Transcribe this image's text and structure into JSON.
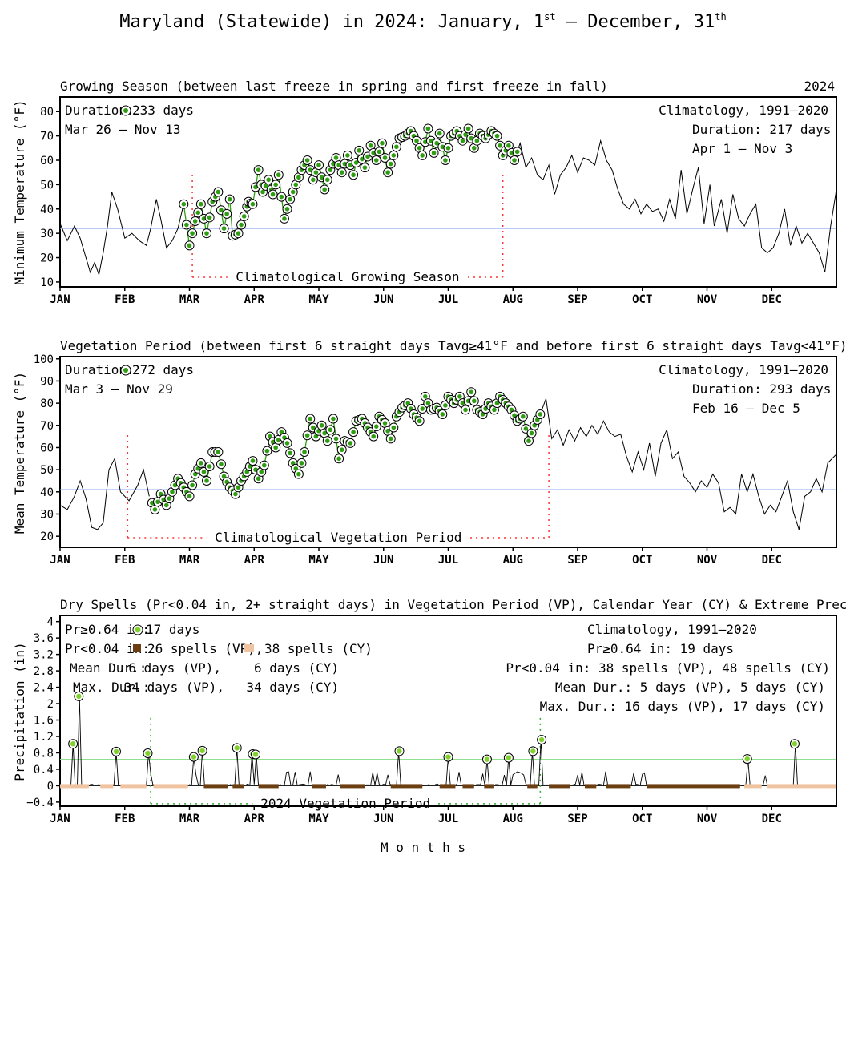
{
  "title": {
    "main": "Maryland (Statewide) in 2024: January, 1",
    "sup1": "st",
    "mid": " – December, 31",
    "sup2": "th"
  },
  "months": [
    "JAN",
    "FEB",
    "MAR",
    "APR",
    "MAY",
    "JUN",
    "JUL",
    "AUG",
    "SEP",
    "OCT",
    "NOV",
    "DEC"
  ],
  "xlabel": "M o n t h s",
  "colors": {
    "line": "#000000",
    "marker_fill": "#2e9d12",
    "marker_light": "#7fd12c",
    "threshold": "#8fa8f5",
    "climo": "#ff3333",
    "dry_vp": "#6b3f12",
    "dry_cy": "#f0c4a0",
    "extreme_line": "#90e090",
    "veg_period": "#33aa33"
  },
  "panel1": {
    "title": "Growing Season (between last freeze in spring and first freeze in fall)",
    "year": "2024",
    "ylabel": "Minimum Temperature (°F)",
    "duration_label": "Duration:",
    "duration_value": "233 days",
    "range": "Mar 26 – Nov 13",
    "climo_title": "Climatology, 1991–2020",
    "climo_duration": "Duration: 217 days",
    "climo_range": "Apr 1 – Nov 3",
    "climo_label": "Climatological Growing Season",
    "yticks": [
      "10",
      "20",
      "30",
      "40",
      "50",
      "60",
      "70",
      "80"
    ]
  },
  "panel2": {
    "title": "Vegetation Period (between first 6 straight days Tavg≥41°F and before first 6 straight days Tavg<41°F)",
    "ylabel": "Mean Temperature (°F)",
    "duration_label": "Duration:",
    "duration_value": "272 days",
    "range": "Mar 3 – Nov 29",
    "climo_title": "Climatology, 1991–2020",
    "climo_duration": "Duration: 293 days",
    "climo_range": "Feb 16 – Dec 5",
    "climo_label": "Climatological Vegetation Period",
    "yticks": [
      "20",
      "30",
      "40",
      "50",
      "60",
      "70",
      "80",
      "90",
      "100"
    ]
  },
  "panel3": {
    "title": "Dry Spells (Pr<0.04 in, 2+ straight days) in Vegetation Period (VP), Calendar Year (CY) & Extreme Precipitation (Pr≥0.64in)",
    "ylabel": "Precipitation (in)",
    "ext_label": "Pr≥0.64 in:",
    "ext_value": "17 days",
    "dry_label": "Pr<0.04 in:",
    "dry_vp": "26 spells (VP),",
    "dry_cy": "38 spells (CY)",
    "mean_label": "Mean Dur.:",
    "mean_vp": "6 days (VP),",
    "mean_cy": "6 days (CY)",
    "max_label": "Max. Dur.:",
    "max_vp": "34 days (VP),",
    "max_cy": "34 days (CY)",
    "climo_title": "Climatology, 1991–2020",
    "climo_ext": "Pr≥0.64 in:  19 days",
    "climo_dry": "Pr<0.04 in:  38 spells (VP), 48 spells (CY)",
    "climo_mean": "Mean Dur.:  5 days (VP),   5 days (CY)",
    "climo_max": "Max. Dur.: 16 days (VP), 17 days (CY)",
    "veg_label": "2024 Vegetation Period",
    "yticks": [
      "−0.4",
      "0",
      "0.4",
      "0.8",
      "1.2",
      "1.6",
      "2",
      "2.4",
      "2.8",
      "3.2",
      "3.6",
      "4"
    ]
  },
  "chart_data": [
    {
      "type": "line",
      "title": "Growing Season (between last freeze in spring and first freeze in fall)",
      "ylabel": "Minimum Temperature (°F)",
      "ylim": [
        8,
        86
      ],
      "threshold": 32,
      "season_start_day": 86,
      "season_end_day": 318,
      "climo_start_day": 92,
      "climo_end_day": 308,
      "anchors": [
        [
          0,
          34
        ],
        [
          5,
          27
        ],
        [
          10,
          33
        ],
        [
          14,
          28
        ],
        [
          17,
          22
        ],
        [
          21,
          14
        ],
        [
          24,
          18
        ],
        [
          27,
          13
        ],
        [
          30,
          22
        ],
        [
          33,
          33
        ],
        [
          36,
          47
        ],
        [
          40,
          40
        ],
        [
          45,
          28
        ],
        [
          50,
          30
        ],
        [
          55,
          27
        ],
        [
          60,
          25
        ],
        [
          63,
          32
        ],
        [
          67,
          44
        ],
        [
          70,
          36
        ],
        [
          74,
          24
        ],
        [
          78,
          27
        ],
        [
          82,
          32
        ],
        [
          86,
          42
        ],
        [
          90,
          25
        ],
        [
          94,
          35
        ],
        [
          98,
          42
        ],
        [
          102,
          30
        ],
        [
          106,
          43
        ],
        [
          110,
          47
        ],
        [
          114,
          32
        ],
        [
          118,
          44
        ],
        [
          120,
          29
        ],
        [
          124,
          30
        ],
        [
          128,
          37
        ],
        [
          131,
          43
        ],
        [
          134,
          42
        ],
        [
          138,
          56
        ],
        [
          141,
          47
        ],
        [
          145,
          52
        ],
        [
          148,
          46
        ],
        [
          152,
          54
        ],
        [
          156,
          36
        ],
        [
          160,
          44
        ],
        [
          164,
          50
        ],
        [
          168,
          56
        ],
        [
          172,
          60
        ],
        [
          176,
          52
        ],
        [
          180,
          58
        ],
        [
          184,
          48
        ],
        [
          188,
          56
        ],
        [
          192,
          61
        ],
        [
          196,
          55
        ],
        [
          200,
          62
        ],
        [
          204,
          54
        ],
        [
          208,
          64
        ],
        [
          212,
          57
        ],
        [
          216,
          66
        ],
        [
          220,
          60
        ],
        [
          224,
          67
        ],
        [
          228,
          55
        ],
        [
          232,
          62
        ],
        [
          236,
          69
        ],
        [
          240,
          70
        ],
        [
          244,
          72
        ],
        [
          248,
          68
        ],
        [
          252,
          62
        ],
        [
          256,
          73
        ],
        [
          260,
          63
        ],
        [
          264,
          71
        ],
        [
          268,
          60
        ],
        [
          272,
          70
        ],
        [
          276,
          72
        ],
        [
          280,
          68
        ],
        [
          284,
          73
        ],
        [
          288,
          65
        ],
        [
          292,
          71
        ],
        [
          296,
          69
        ],
        [
          300,
          72
        ],
        [
          304,
          70
        ],
        [
          308,
          62
        ],
        [
          312,
          66
        ],
        [
          316,
          60
        ],
        [
          320,
          67
        ],
        [
          324,
          57
        ],
        [
          328,
          61
        ],
        [
          332,
          54
        ],
        [
          336,
          52
        ],
        [
          340,
          58
        ],
        [
          344,
          46
        ],
        [
          348,
          54
        ],
        [
          352,
          57
        ],
        [
          356,
          62
        ],
        [
          360,
          55
        ],
        [
          364,
          61
        ],
        [
          368,
          60
        ],
        [
          372,
          58
        ],
        [
          376,
          68
        ],
        [
          380,
          60
        ],
        [
          384,
          56
        ],
        [
          388,
          48
        ],
        [
          392,
          42
        ],
        [
          396,
          40
        ],
        [
          400,
          44
        ],
        [
          404,
          38
        ],
        [
          408,
          42
        ],
        [
          412,
          39
        ],
        [
          416,
          40
        ],
        [
          420,
          35
        ],
        [
          424,
          44
        ],
        [
          428,
          36
        ],
        [
          432,
          56
        ],
        [
          436,
          38
        ],
        [
          440,
          48
        ],
        [
          444,
          57
        ],
        [
          448,
          34
        ],
        [
          452,
          50
        ],
        [
          455,
          33
        ],
        [
          460,
          44
        ],
        [
          464,
          30
        ],
        [
          468,
          46
        ],
        [
          472,
          36
        ],
        [
          476,
          33
        ],
        [
          480,
          38
        ],
        [
          484,
          42
        ],
        [
          488,
          24
        ],
        [
          492,
          22
        ],
        [
          496,
          24
        ],
        [
          500,
          30
        ],
        [
          504,
          40
        ],
        [
          508,
          25
        ],
        [
          512,
          33
        ],
        [
          516,
          26
        ],
        [
          520,
          30
        ],
        [
          524,
          26
        ],
        [
          528,
          22
        ],
        [
          532,
          14
        ],
        [
          536,
          33
        ],
        [
          540,
          48
        ]
      ],
      "note": "x in day units of a 540-day display scale matching the month axis (JAN..DEC); markers drawn for in-season days"
    },
    {
      "type": "line",
      "title": "Vegetation Period (between first 6 straight days Tavg≥41°F and before first 6 straight days Tavg<41°F)",
      "ylabel": "Mean Temperature (°F)",
      "ylim": [
        15,
        101
      ],
      "threshold": 41,
      "season_start_day": 63,
      "season_end_day": 334,
      "climo_start_day": 47,
      "climo_end_day": 340,
      "anchors": [
        [
          0,
          34
        ],
        [
          5,
          32
        ],
        [
          10,
          38
        ],
        [
          14,
          45
        ],
        [
          18,
          37
        ],
        [
          22,
          24
        ],
        [
          26,
          23
        ],
        [
          30,
          26
        ],
        [
          34,
          50
        ],
        [
          38,
          55
        ],
        [
          42,
          40
        ],
        [
          48,
          36
        ],
        [
          54,
          43
        ],
        [
          58,
          50
        ],
        [
          62,
          38
        ],
        [
          66,
          32
        ],
        [
          70,
          39
        ],
        [
          74,
          34
        ],
        [
          78,
          40
        ],
        [
          82,
          46
        ],
        [
          86,
          42
        ],
        [
          90,
          38
        ],
        [
          94,
          48
        ],
        [
          98,
          53
        ],
        [
          102,
          45
        ],
        [
          106,
          58
        ],
        [
          110,
          58
        ],
        [
          114,
          47
        ],
        [
          118,
          42
        ],
        [
          122,
          39
        ],
        [
          126,
          45
        ],
        [
          130,
          49
        ],
        [
          134,
          54
        ],
        [
          138,
          46
        ],
        [
          142,
          52
        ],
        [
          146,
          65
        ],
        [
          150,
          60
        ],
        [
          154,
          67
        ],
        [
          158,
          62
        ],
        [
          162,
          53
        ],
        [
          166,
          48
        ],
        [
          170,
          58
        ],
        [
          174,
          73
        ],
        [
          178,
          65
        ],
        [
          182,
          70
        ],
        [
          186,
          63
        ],
        [
          190,
          73
        ],
        [
          194,
          55
        ],
        [
          198,
          63
        ],
        [
          202,
          62
        ],
        [
          206,
          72
        ],
        [
          210,
          73
        ],
        [
          214,
          69
        ],
        [
          218,
          65
        ],
        [
          222,
          74
        ],
        [
          226,
          71
        ],
        [
          230,
          64
        ],
        [
          234,
          74
        ],
        [
          238,
          78
        ],
        [
          242,
          80
        ],
        [
          246,
          75
        ],
        [
          250,
          72
        ],
        [
          254,
          83
        ],
        [
          258,
          77
        ],
        [
          262,
          78
        ],
        [
          266,
          75
        ],
        [
          270,
          83
        ],
        [
          274,
          80
        ],
        [
          278,
          83
        ],
        [
          282,
          77
        ],
        [
          286,
          85
        ],
        [
          290,
          77
        ],
        [
          294,
          75
        ],
        [
          298,
          80
        ],
        [
          302,
          77
        ],
        [
          306,
          83
        ],
        [
          310,
          80
        ],
        [
          314,
          77
        ],
        [
          318,
          72
        ],
        [
          322,
          74
        ],
        [
          326,
          63
        ],
        [
          330,
          70
        ],
        [
          334,
          75
        ],
        [
          338,
          82
        ],
        [
          342,
          64
        ],
        [
          346,
          68
        ],
        [
          350,
          61
        ],
        [
          354,
          68
        ],
        [
          358,
          63
        ],
        [
          362,
          69
        ],
        [
          366,
          65
        ],
        [
          370,
          70
        ],
        [
          374,
          66
        ],
        [
          378,
          72
        ],
        [
          382,
          67
        ],
        [
          386,
          65
        ],
        [
          390,
          66
        ],
        [
          394,
          56
        ],
        [
          398,
          49
        ],
        [
          402,
          58
        ],
        [
          406,
          50
        ],
        [
          410,
          62
        ],
        [
          414,
          47
        ],
        [
          418,
          62
        ],
        [
          422,
          68
        ],
        [
          426,
          55
        ],
        [
          430,
          58
        ],
        [
          434,
          47
        ],
        [
          438,
          44
        ],
        [
          442,
          40
        ],
        [
          446,
          45
        ],
        [
          450,
          42
        ],
        [
          454,
          48
        ],
        [
          458,
          44
        ],
        [
          462,
          31
        ],
        [
          466,
          33
        ],
        [
          470,
          30
        ],
        [
          474,
          48
        ],
        [
          478,
          40
        ],
        [
          482,
          48
        ],
        [
          486,
          38
        ],
        [
          490,
          30
        ],
        [
          494,
          34
        ],
        [
          498,
          31
        ],
        [
          502,
          38
        ],
        [
          506,
          45
        ],
        [
          510,
          31
        ],
        [
          514,
          23
        ],
        [
          518,
          38
        ],
        [
          522,
          40
        ],
        [
          526,
          46
        ],
        [
          530,
          40
        ],
        [
          534,
          53
        ],
        [
          540,
          57
        ]
      ]
    },
    {
      "type": "bar",
      "title": "Dry Spells (Pr<0.04 in, 2+ straight days) in Vegetation Period (VP), Calendar Year (CY) & Extreme Precipitation (Pr≥0.64in)",
      "ylabel": "Precipitation (in)",
      "ylim": [
        -0.5,
        4.15
      ],
      "extreme_threshold": 0.64,
      "veg_start_day": 63,
      "veg_end_day": 334,
      "extreme_days": [
        [
          9,
          1.02
        ],
        [
          13,
          2.18
        ],
        [
          39,
          0.83
        ],
        [
          61,
          0.79
        ],
        [
          93,
          0.7
        ],
        [
          99,
          0.85
        ],
        [
          123,
          0.92
        ],
        [
          134,
          0.77
        ],
        [
          136,
          0.76
        ],
        [
          236,
          0.84
        ],
        [
          270,
          0.7
        ],
        [
          297,
          0.64
        ],
        [
          312,
          0.68
        ],
        [
          329,
          0.84
        ],
        [
          335,
          1.12
        ],
        [
          478,
          0.65
        ],
        [
          511,
          1.02
        ]
      ],
      "dry_spells_cy": [
        [
          0,
          20
        ],
        [
          28,
          37
        ],
        [
          42,
          60
        ],
        [
          65,
          89
        ],
        [
          476,
          488
        ],
        [
          492,
          540
        ]
      ],
      "dry_spells_vp": [
        [
          100,
          117
        ],
        [
          120,
          128
        ],
        [
          138,
          152
        ],
        [
          175,
          185
        ],
        [
          195,
          212
        ],
        [
          230,
          252
        ],
        [
          264,
          275
        ],
        [
          280,
          288
        ],
        [
          295,
          302
        ],
        [
          325,
          332
        ],
        [
          340,
          355
        ],
        [
          365,
          373
        ],
        [
          380,
          397
        ],
        [
          408,
          473
        ]
      ]
    }
  ]
}
